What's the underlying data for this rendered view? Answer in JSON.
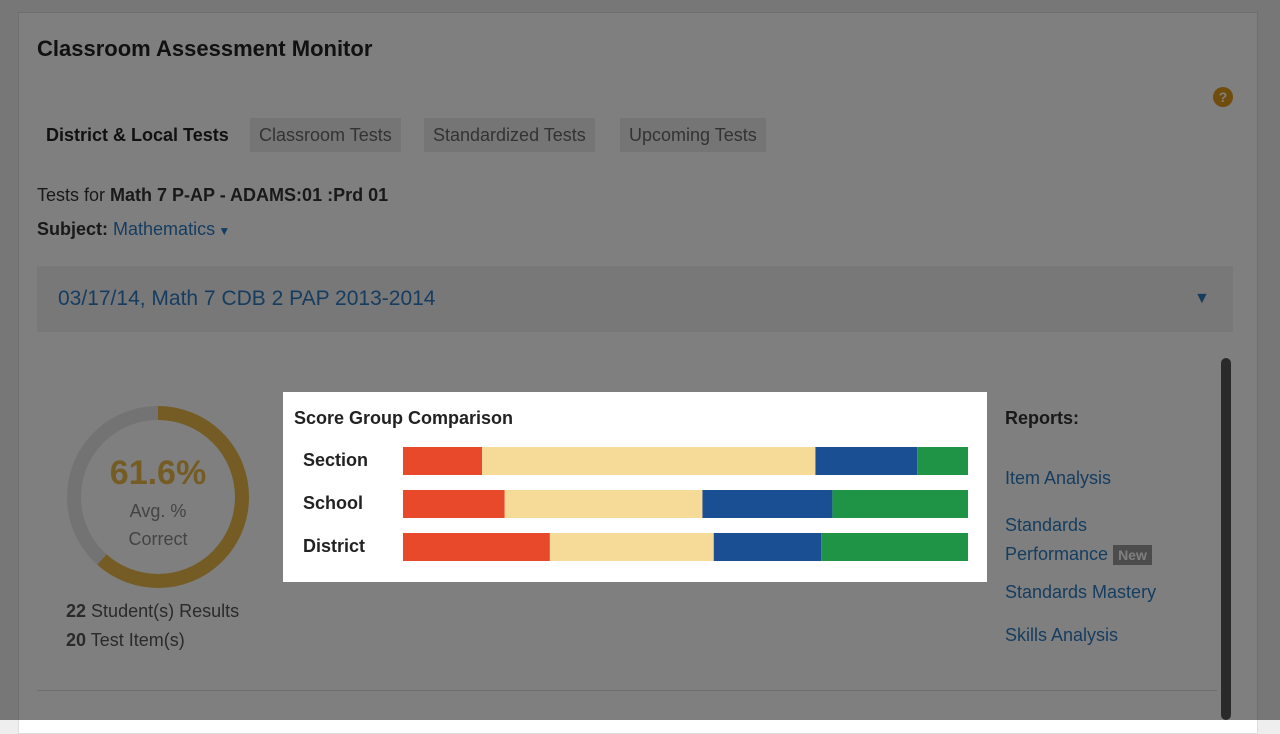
{
  "header": {
    "title": "Classroom Assessment Monitor"
  },
  "tabs": [
    "District & Local Tests",
    "Classroom Tests",
    "Standardized Tests",
    "Upcoming Tests"
  ],
  "tests_for": {
    "label": "Tests for",
    "value": "Math 7 P-AP - ADAMS:01 :Prd 01"
  },
  "subject": {
    "label": "Subject:",
    "value": "Mathematics"
  },
  "test_header": "03/17/14, Math 7 CDB 2 PAP 2013-2014",
  "donut": {
    "value": 61.6,
    "label": "61.6%",
    "caption": [
      "Avg. %",
      "Correct"
    ]
  },
  "counts": [
    {
      "number": 22,
      "text": "Student(s) Results"
    },
    {
      "number": 20,
      "text": "Test Item(s)"
    }
  ],
  "reports": {
    "title": "Reports:",
    "links": [
      "Item Analysis",
      "Standards Performance",
      "Standards Mastery",
      "Skills Analysis"
    ],
    "badge": "New"
  },
  "chart_data": {
    "type": "stacked-bar",
    "orientation": "horizontal",
    "title": "Score Group Comparison",
    "categories": [
      "Section",
      "School",
      "District"
    ],
    "xlim": [
      0,
      100
    ],
    "series": [
      {
        "color": "#e8492b",
        "values": [
          14,
          18,
          26
        ]
      },
      {
        "color": "#f6da97",
        "values": [
          59,
          35,
          29
        ]
      },
      {
        "color": "#1b4f93",
        "values": [
          18,
          23,
          19
        ]
      },
      {
        "color": "#1f9346",
        "values": [
          9,
          24,
          26
        ]
      }
    ]
  }
}
